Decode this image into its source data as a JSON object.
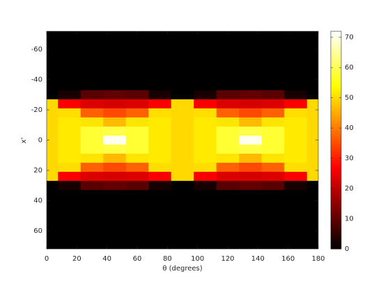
{
  "chart_data": {
    "type": "heatmap",
    "xlabel": "θ (degrees)",
    "ylabel": "x'",
    "colormap": "hot",
    "x": [
      0,
      15,
      30,
      45,
      60,
      75,
      90,
      105,
      120,
      135,
      150,
      165,
      180
    ],
    "y": [
      -72,
      -66,
      -60,
      -54,
      -48,
      -42,
      -36,
      -30,
      -24,
      -18,
      -12,
      -6,
      0,
      6,
      12,
      18,
      24,
      30,
      36,
      42,
      48,
      54,
      60,
      66,
      72
    ],
    "z": [
      [
        0,
        0,
        0,
        0,
        0,
        0,
        0,
        0,
        0,
        0,
        0,
        0,
        0
      ],
      [
        0,
        0,
        0,
        0,
        0,
        0,
        0,
        0,
        0,
        0,
        0,
        0,
        0
      ],
      [
        0,
        0,
        0,
        0,
        0,
        0,
        0,
        0,
        0,
        0,
        0,
        0,
        0
      ],
      [
        0,
        0,
        0,
        0,
        0,
        0,
        0,
        0,
        0,
        0,
        0,
        0,
        0
      ],
      [
        0,
        0,
        0,
        0,
        0,
        0,
        0,
        0,
        0,
        0,
        0,
        0,
        0
      ],
      [
        0,
        0,
        0,
        0,
        0,
        0,
        0,
        0,
        0,
        0,
        0,
        0,
        0
      ],
      [
        0,
        0,
        0,
        0,
        0,
        0,
        0,
        0,
        0,
        0,
        0,
        0,
        0
      ],
      [
        0,
        2.5,
        9.6,
        10.7,
        9.6,
        2.5,
        0,
        2.5,
        9.6,
        10.7,
        9.6,
        2.5,
        0
      ],
      [
        50,
        26.5,
        23.4,
        22.7,
        23.4,
        26.5,
        50,
        26.5,
        23.4,
        22.7,
        23.4,
        26.5,
        50
      ],
      [
        50,
        50.5,
        37.3,
        34.7,
        37.3,
        50.5,
        50,
        50.5,
        37.3,
        34.7,
        37.3,
        50.5,
        50
      ],
      [
        50,
        51.8,
        51.2,
        46.7,
        51.2,
        51.8,
        50,
        51.8,
        51.2,
        46.7,
        51.2,
        51.8,
        50
      ],
      [
        50,
        51.8,
        57.7,
        58.7,
        57.7,
        51.8,
        50,
        51.8,
        57.7,
        58.7,
        57.7,
        51.8,
        50
      ],
      [
        50,
        51.8,
        57.7,
        70.7,
        57.7,
        51.8,
        50,
        51.8,
        57.7,
        70.7,
        57.7,
        51.8,
        50
      ],
      [
        50,
        51.8,
        57.7,
        58.7,
        57.7,
        51.8,
        50,
        51.8,
        57.7,
        58.7,
        57.7,
        51.8,
        50
      ],
      [
        50,
        51.8,
        51.2,
        46.7,
        51.2,
        51.8,
        50,
        51.8,
        51.2,
        46.7,
        51.2,
        51.8,
        50
      ],
      [
        50,
        50.5,
        37.3,
        34.7,
        37.3,
        50.5,
        50,
        50.5,
        37.3,
        34.7,
        37.3,
        50.5,
        50
      ],
      [
        50,
        26.5,
        23.4,
        22.7,
        23.4,
        26.5,
        50,
        26.5,
        23.4,
        22.7,
        23.4,
        26.5,
        50
      ],
      [
        0,
        2.5,
        9.6,
        10.7,
        9.6,
        2.5,
        0,
        2.5,
        9.6,
        10.7,
        9.6,
        2.5,
        0
      ],
      [
        0,
        0,
        0,
        0,
        0,
        0,
        0,
        0,
        0,
        0,
        0,
        0,
        0
      ],
      [
        0,
        0,
        0,
        0,
        0,
        0,
        0,
        0,
        0,
        0,
        0,
        0,
        0
      ],
      [
        0,
        0,
        0,
        0,
        0,
        0,
        0,
        0,
        0,
        0,
        0,
        0,
        0
      ],
      [
        0,
        0,
        0,
        0,
        0,
        0,
        0,
        0,
        0,
        0,
        0,
        0,
        0
      ],
      [
        0,
        0,
        0,
        0,
        0,
        0,
        0,
        0,
        0,
        0,
        0,
        0,
        0
      ],
      [
        0,
        0,
        0,
        0,
        0,
        0,
        0,
        0,
        0,
        0,
        0,
        0,
        0
      ],
      [
        0,
        0,
        0,
        0,
        0,
        0,
        0,
        0,
        0,
        0,
        0,
        0,
        0
      ]
    ],
    "xlim": [
      0,
      180
    ],
    "xticks": [
      0,
      20,
      40,
      60,
      80,
      100,
      120,
      140,
      160,
      180
    ],
    "ylim": [
      -72,
      72
    ],
    "yticks": [
      -60,
      -40,
      -20,
      0,
      20,
      40,
      60
    ],
    "clim": [
      0,
      72
    ],
    "cticks": [
      0,
      10,
      20,
      30,
      40,
      50,
      60,
      70
    ]
  }
}
